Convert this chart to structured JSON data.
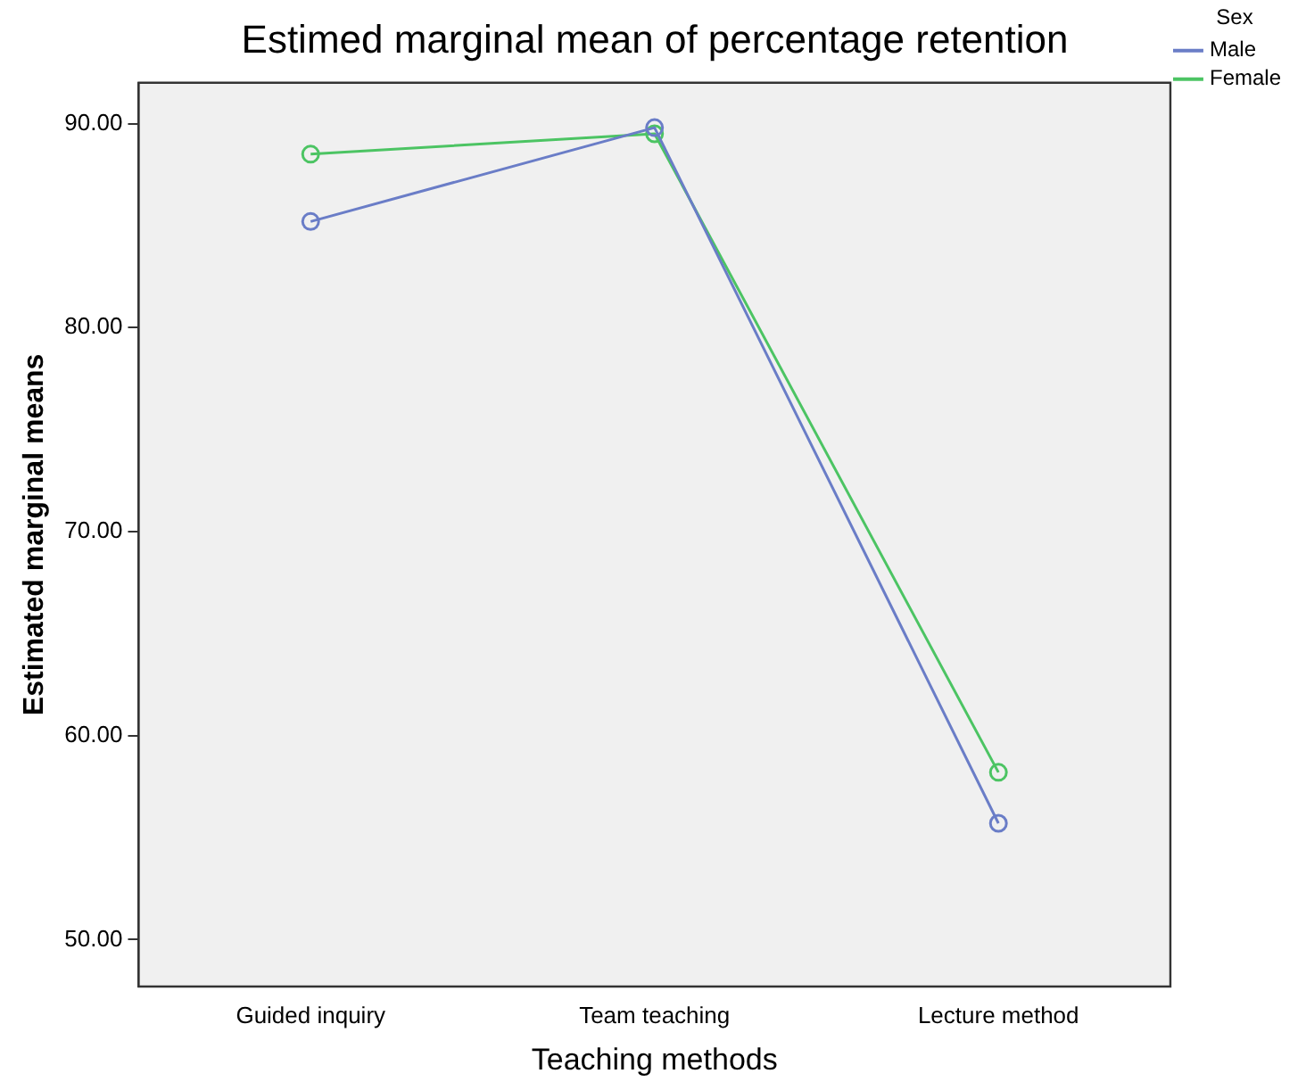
{
  "chart_data": {
    "type": "line",
    "title": "Estimed marginal mean of percentage retention",
    "xlabel": "Teaching methods",
    "ylabel": "Estimated marginal means",
    "legend_title": "Sex",
    "categories": [
      "Guided inquiry",
      "Team teaching",
      "Lecture method"
    ],
    "series": [
      {
        "name": "Male",
        "color": "#6a7dc7",
        "values": [
          85.2,
          89.8,
          55.7
        ]
      },
      {
        "name": "Female",
        "color": "#4cc463",
        "values": [
          88.5,
          89.5,
          58.2
        ]
      }
    ],
    "ylim": [
      47.7,
      92.0
    ],
    "yticks": [
      {
        "value": 50,
        "label": "50.00"
      },
      {
        "value": 60,
        "label": "60.00"
      },
      {
        "value": 70,
        "label": "70.00"
      },
      {
        "value": 80,
        "label": "80.00"
      },
      {
        "value": 90,
        "label": "90.00"
      }
    ],
    "grid": false,
    "legend": "top right",
    "marker": "circle",
    "line_style": "solid"
  }
}
